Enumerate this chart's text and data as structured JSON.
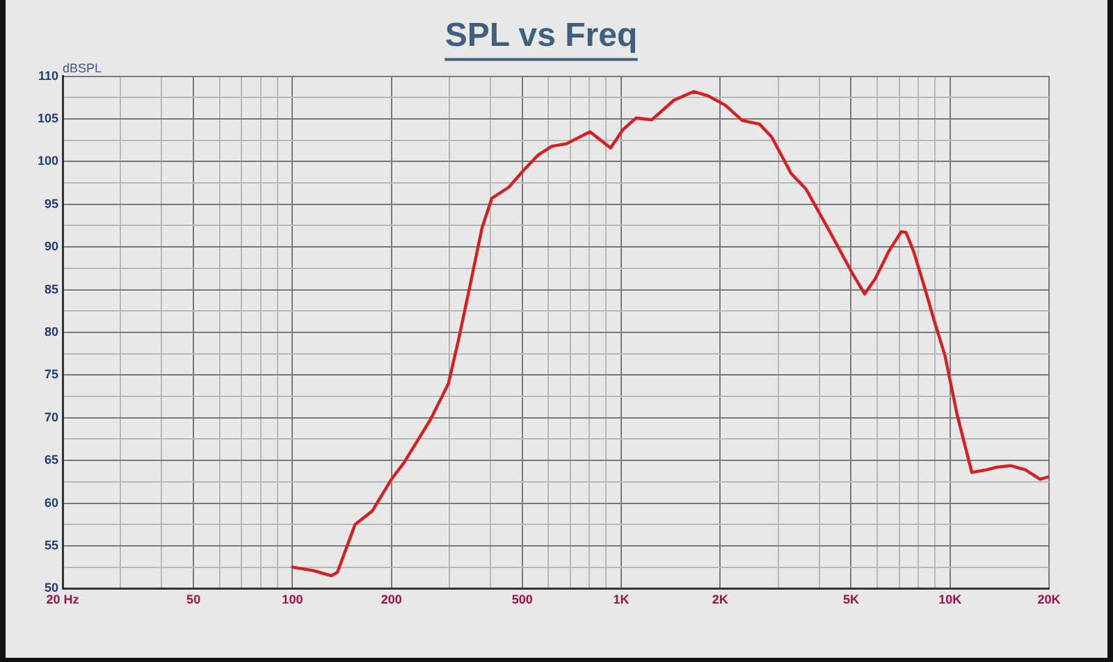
{
  "chart_data": {
    "type": "line",
    "title": "SPL vs Freq",
    "ylabel": "dBSPL",
    "log": "x",
    "grid": true,
    "legend": false,
    "marker": "none",
    "line_style": "solid",
    "xlim": [
      20,
      20000
    ],
    "ylim": [
      50,
      110
    ],
    "xticks": [
      {
        "value": 20,
        "label": "20 Hz"
      },
      {
        "value": 30,
        "label": null
      },
      {
        "value": 40,
        "label": null
      },
      50,
      {
        "value": 60,
        "label": null
      },
      {
        "value": 70,
        "label": null
      },
      {
        "value": 80,
        "label": null
      },
      {
        "value": 90,
        "label": null
      },
      100,
      200,
      {
        "value": 300,
        "label": null
      },
      {
        "value": 400,
        "label": null
      },
      500,
      {
        "value": 600,
        "label": null
      },
      {
        "value": 700,
        "label": null
      },
      {
        "value": 800,
        "label": null
      },
      {
        "value": 900,
        "label": null
      },
      {
        "value": 1000,
        "label": "1K"
      },
      {
        "value": 2000,
        "label": "2K"
      },
      {
        "value": 3000,
        "label": null
      },
      {
        "value": 4000,
        "label": null
      },
      {
        "value": 5000,
        "label": "5K"
      },
      {
        "value": 6000,
        "label": null
      },
      {
        "value": 7000,
        "label": null
      },
      {
        "value": 8000,
        "label": null
      },
      {
        "value": 9000,
        "label": null
      },
      {
        "value": 10000,
        "label": "10K"
      },
      {
        "value": 20000,
        "label": "20K"
      }
    ],
    "yticks": [
      50,
      {
        "value": 52.5,
        "label": null
      },
      55,
      {
        "value": 57.5,
        "label": null
      },
      60,
      {
        "value": 62.5,
        "label": null
      },
      65,
      {
        "value": 67.5,
        "label": null
      },
      70,
      {
        "value": 72.5,
        "label": null
      },
      75,
      {
        "value": 77.5,
        "label": null
      },
      80,
      {
        "value": 82.5,
        "label": null
      },
      85,
      {
        "value": 87.5,
        "label": null
      },
      90,
      {
        "value": 92.5,
        "label": null
      },
      95,
      {
        "value": 97.5,
        "label": null
      },
      100,
      {
        "value": 102.5,
        "label": null
      },
      105,
      {
        "value": 107.5,
        "label": null
      },
      110
    ],
    "series": [
      {
        "color": "#d42020",
        "x": [
          100,
          116,
          131,
          137,
          155,
          175,
          200,
          218,
          263,
          298,
          319,
          346,
          377,
          404,
          455,
          505,
          560,
          615,
          682,
          803,
          928,
          1010,
          1108,
          1240,
          1447,
          1659,
          1839,
          2073,
          2336,
          2632,
          2866,
          3288,
          3645,
          4322,
          5049,
          5500,
          5925,
          6514,
          7107,
          7350,
          7746,
          8290,
          9010,
          9650,
          10520,
          11650,
          12900,
          13800,
          15300,
          16960,
          18780,
          20000
        ],
        "values": [
          52.5,
          52.1,
          51.5,
          51.9,
          57.5,
          59.1,
          62.8,
          64.7,
          69.8,
          74,
          78.9,
          85.3,
          92.2,
          95.7,
          97,
          99,
          100.8,
          101.8,
          102.1,
          103.5,
          101.6,
          103.7,
          105.1,
          104.9,
          107.2,
          108.2,
          107.7,
          106.6,
          104.8,
          104.4,
          102.9,
          98.6,
          96.8,
          91.7,
          86.9,
          84.5,
          86.3,
          89.5,
          91.8,
          91.7,
          89.5,
          85.8,
          81,
          77.3,
          70.3,
          63.6,
          63.9,
          64.2,
          64.4,
          63.9,
          62.8,
          63.1
        ]
      }
    ]
  }
}
